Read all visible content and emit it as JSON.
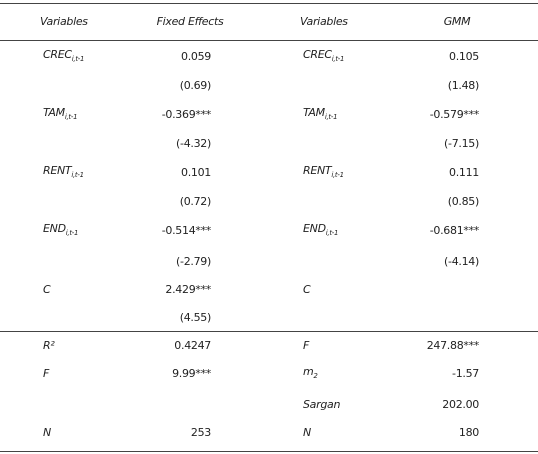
{
  "table": {
    "header": [
      "Variables",
      "Fixed Effects",
      "Variables",
      "GMM"
    ],
    "rows": [
      [
        {
          "name": "CREC",
          "sub": "i,t-1"
        },
        "0.059",
        {
          "name": "CREC",
          "sub": "i,t-1"
        },
        "0.105"
      ],
      [
        null,
        "(0.69)",
        null,
        "(1.48)"
      ],
      [
        {
          "name": "TAM",
          "sub": "i,t-1"
        },
        "-0.369***",
        {
          "name": "TAM",
          "sub": "i,t-1"
        },
        "-0.579***"
      ],
      [
        null,
        "(-4.32)",
        null,
        "(-7.15)"
      ],
      [
        {
          "name": "RENT",
          "sub": "i,t-1"
        },
        "0.101",
        {
          "name": "RENT",
          "sub": "i,t-1"
        },
        "0.111"
      ],
      [
        null,
        "(0.72)",
        null,
        "(0.85)"
      ],
      [
        {
          "name": "END",
          "sub": "i,t-1"
        },
        "-0.514***",
        {
          "name": "END",
          "sub": "i,t-1"
        },
        "-0.681***"
      ],
      [
        null,
        "(-2.79)",
        null,
        "(-4.14)"
      ],
      [
        "C",
        "2.429***",
        "C",
        null
      ],
      [
        null,
        "(4.55)",
        null,
        null
      ],
      [
        "R²",
        "0.4247",
        "F",
        "247.88***"
      ],
      [
        "F",
        "9.99***",
        {
          "name": "m",
          "sub": "2"
        },
        "-1.57"
      ],
      [
        null,
        null,
        "Sargan",
        "202.00"
      ],
      [
        "N",
        "253",
        "N",
        "180"
      ]
    ]
  }
}
